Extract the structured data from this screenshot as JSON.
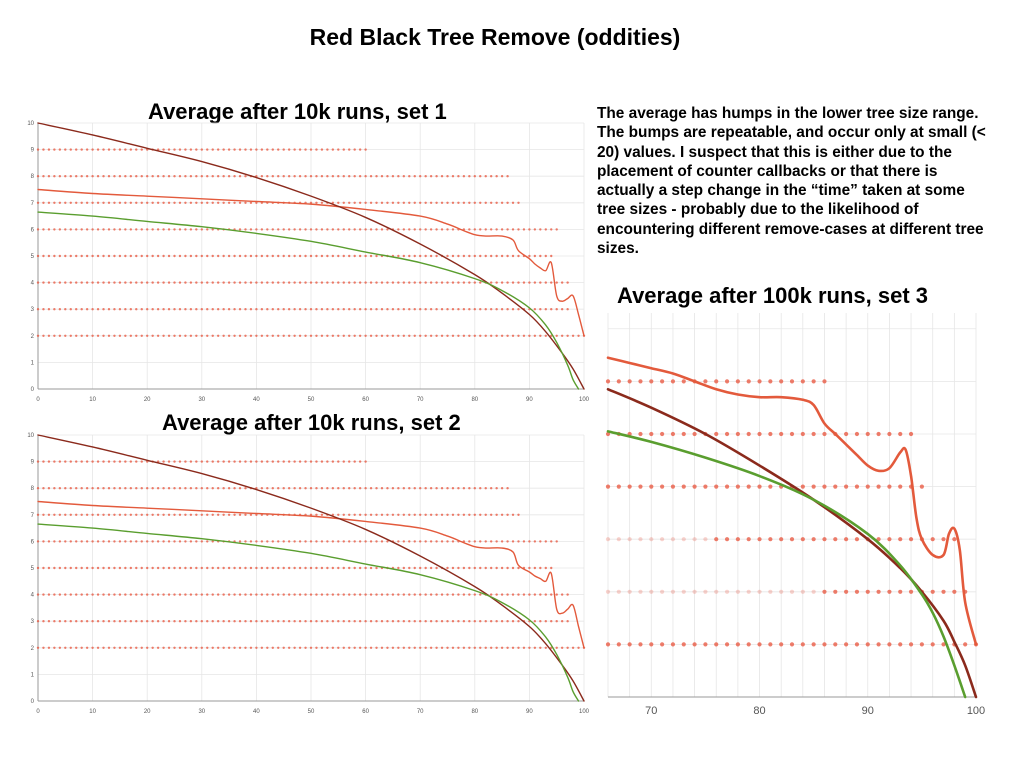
{
  "page": {
    "title": "Red Black Tree Remove (oddities)",
    "note": "The average has humps in the lower tree size range. The bumps are repeatable, and occur only at small (< 20) values. I suspect that this is either due to the placement of counter callbacks or that there is actually a step change in the “time” taken at some tree sizes - probably due to the likelihood of encountering different remove-cases at different tree sizes."
  },
  "colors": {
    "dots": "#e8513a",
    "average": "#e35a3c",
    "dark_fit": "#8b2a1c",
    "green_fit": "#5a9e2f",
    "grid": "#e6e6e6",
    "axis": "#999999"
  },
  "chart_data": [
    {
      "type": "line",
      "title": "Average after 10k runs, set 1",
      "xlim": [
        0,
        100
      ],
      "ylim": [
        0,
        10
      ],
      "x_ticks": [
        0,
        10,
        20,
        30,
        40,
        50,
        60,
        70,
        80,
        90,
        100
      ],
      "y_ticks": [
        0,
        1,
        2,
        3,
        4,
        5,
        6,
        7,
        8,
        9,
        10
      ],
      "grid": true,
      "series": [
        {
          "role": "average",
          "x": [
            0,
            10,
            20,
            30,
            40,
            50,
            60,
            70,
            75,
            78,
            80,
            82,
            85,
            87,
            88,
            90,
            91,
            92,
            93,
            94,
            95,
            96,
            97,
            98,
            99,
            100
          ],
          "y": [
            7.5,
            7.35,
            7.25,
            7.15,
            7.05,
            6.95,
            6.75,
            6.5,
            6.2,
            5.95,
            5.8,
            5.75,
            5.75,
            5.6,
            5.2,
            4.9,
            4.7,
            4.55,
            4.45,
            4.75,
            3.5,
            3.3,
            3.4,
            3.5,
            2.8,
            2.0
          ]
        },
        {
          "role": "dark-fit",
          "x": [
            0,
            10,
            20,
            30,
            40,
            50,
            60,
            70,
            80,
            85,
            90,
            93,
            96,
            98,
            100
          ],
          "y": [
            10,
            9.55,
            9.05,
            8.55,
            7.95,
            7.25,
            6.45,
            5.45,
            4.3,
            3.6,
            2.8,
            2.15,
            1.35,
            0.75,
            0
          ]
        },
        {
          "role": "green-fit",
          "x": [
            0,
            10,
            20,
            30,
            40,
            50,
            60,
            70,
            80,
            85,
            90,
            93,
            95,
            97,
            98,
            99
          ],
          "y": [
            6.65,
            6.5,
            6.3,
            6.1,
            5.85,
            5.55,
            5.15,
            4.75,
            4.15,
            3.7,
            3.05,
            2.4,
            1.75,
            0.9,
            0.35,
            0
          ]
        }
      ],
      "dot_rows": [
        {
          "y": 9,
          "x_end": 60
        },
        {
          "y": 8,
          "x_end": 86
        },
        {
          "y": 7,
          "x_end": 88
        },
        {
          "y": 6,
          "x_end": 95
        },
        {
          "y": 5,
          "x_end": 94
        },
        {
          "y": 4,
          "x_end": 97
        },
        {
          "y": 3,
          "x_end": 97
        },
        {
          "y": 2,
          "x_end": 100
        }
      ]
    },
    {
      "type": "line",
      "title": "Average after 10k runs, set 2",
      "xlim": [
        0,
        100
      ],
      "ylim": [
        0,
        10
      ],
      "x_ticks": [
        0,
        10,
        20,
        30,
        40,
        50,
        60,
        70,
        80,
        90,
        100
      ],
      "y_ticks": [
        0,
        1,
        2,
        3,
        4,
        5,
        6,
        7,
        8,
        9,
        10
      ],
      "grid": true,
      "series": [
        {
          "role": "average",
          "x": [
            0,
            10,
            20,
            30,
            40,
            50,
            60,
            70,
            75,
            78,
            80,
            82,
            85,
            87,
            88,
            90,
            91,
            92,
            93,
            94,
            95,
            96,
            97,
            98,
            99,
            100
          ],
          "y": [
            7.5,
            7.35,
            7.25,
            7.15,
            7.05,
            6.95,
            6.75,
            6.5,
            6.2,
            5.95,
            5.8,
            5.75,
            5.75,
            5.6,
            5.1,
            4.85,
            4.7,
            4.6,
            4.5,
            4.8,
            3.45,
            3.3,
            3.45,
            3.6,
            2.8,
            2.0
          ]
        },
        {
          "role": "dark-fit",
          "x": [
            0,
            10,
            20,
            30,
            40,
            50,
            60,
            70,
            80,
            85,
            90,
            93,
            96,
            98,
            100
          ],
          "y": [
            10,
            9.55,
            9.05,
            8.55,
            7.95,
            7.25,
            6.45,
            5.45,
            4.3,
            3.6,
            2.8,
            2.15,
            1.35,
            0.75,
            0
          ]
        },
        {
          "role": "green-fit",
          "x": [
            0,
            10,
            20,
            30,
            40,
            50,
            60,
            70,
            80,
            85,
            90,
            93,
            95,
            97,
            98,
            99
          ],
          "y": [
            6.65,
            6.5,
            6.3,
            6.1,
            5.85,
            5.55,
            5.15,
            4.75,
            4.15,
            3.7,
            3.05,
            2.4,
            1.75,
            0.9,
            0.35,
            0
          ]
        }
      ],
      "dot_rows": [
        {
          "y": 9,
          "x_end": 60
        },
        {
          "y": 8,
          "x_end": 86
        },
        {
          "y": 7,
          "x_end": 88
        },
        {
          "y": 6,
          "x_end": 95
        },
        {
          "y": 5,
          "x_end": 94
        },
        {
          "y": 4,
          "x_end": 97
        },
        {
          "y": 3,
          "x_end": 97
        },
        {
          "y": 2,
          "x_end": 100
        }
      ]
    },
    {
      "type": "line",
      "title": "Average after 100k runs, set 3",
      "xlim": [
        66,
        100
      ],
      "ylim": [
        0,
        7.3
      ],
      "x_ticks": [
        70,
        80,
        90,
        100
      ],
      "y_ticks": [],
      "grid": true,
      "series": [
        {
          "role": "average",
          "x": [
            66,
            68,
            70,
            72,
            74,
            76,
            78,
            80,
            82,
            84,
            85,
            86,
            87,
            88,
            89,
            90,
            91,
            92,
            93,
            93.5,
            94,
            94.5,
            95,
            96,
            97,
            97.5,
            98,
            98.5,
            99,
            100
          ],
          "y": [
            6.45,
            6.35,
            6.25,
            6.15,
            6.0,
            5.85,
            5.75,
            5.7,
            5.7,
            5.65,
            5.55,
            5.2,
            5.0,
            4.8,
            4.6,
            4.4,
            4.3,
            4.35,
            4.65,
            4.7,
            4.2,
            3.4,
            3.0,
            2.7,
            2.7,
            3.1,
            3.2,
            2.8,
            1.8,
            1.0
          ]
        },
        {
          "role": "dark-fit",
          "x": [
            66,
            70,
            75,
            80,
            85,
            90,
            93,
            95,
            97,
            98,
            99,
            100
          ],
          "y": [
            5.85,
            5.5,
            5.0,
            4.4,
            3.75,
            3.0,
            2.45,
            2.0,
            1.45,
            1.05,
            0.6,
            0
          ]
        },
        {
          "role": "green-fit",
          "x": [
            66,
            70,
            75,
            80,
            85,
            90,
            93,
            95,
            96,
            97,
            98,
            99
          ],
          "y": [
            5.05,
            4.85,
            4.55,
            4.2,
            3.75,
            3.1,
            2.5,
            1.95,
            1.6,
            1.15,
            0.6,
            0
          ]
        }
      ],
      "dot_rows": [
        {
          "y": 6,
          "x_end": 86
        },
        {
          "y": 5,
          "x_end": 94
        },
        {
          "y": 4,
          "x_end": 95
        },
        {
          "y": 3,
          "x_end": 98
        },
        {
          "y": 2,
          "x_end": 99
        },
        {
          "y": 1,
          "x_end": 100
        }
      ]
    }
  ]
}
